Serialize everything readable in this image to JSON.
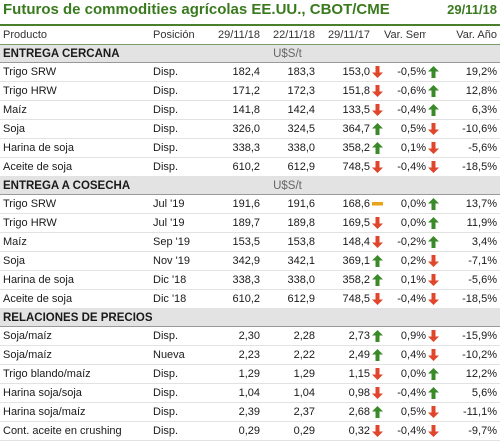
{
  "header": {
    "title": "Futuros de commodities agrícolas EE.UU., CBOT/CME",
    "date": "29/11/18"
  },
  "columns": [
    "Producto",
    "Posición",
    "29/11/18",
    "22/11/18",
    "29/11/17",
    "Var. Sem.",
    "Var. Año"
  ],
  "sections": [
    {
      "title": "ENTREGA CERCANA",
      "unit": "U$S/t",
      "rows": [
        {
          "product": "Trigo SRW",
          "position": "Disp.",
          "v1": "182,4",
          "v2": "183,3",
          "v3": "153,0",
          "ind1": "down",
          "wk": "-0,5%",
          "ind2": "up",
          "yr": "19,2%"
        },
        {
          "product": "Trigo HRW",
          "position": "Disp.",
          "v1": "171,2",
          "v2": "172,3",
          "v3": "151,8",
          "ind1": "down",
          "wk": "-0,6%",
          "ind2": "up",
          "yr": "12,8%"
        },
        {
          "product": "Maíz",
          "position": "Disp.",
          "v1": "141,8",
          "v2": "142,4",
          "v3": "133,5",
          "ind1": "down",
          "wk": "-0,4%",
          "ind2": "up",
          "yr": "6,3%"
        },
        {
          "product": "Soja",
          "position": "Disp.",
          "v1": "326,0",
          "v2": "324,5",
          "v3": "364,7",
          "ind1": "up",
          "wk": "0,5%",
          "ind2": "down",
          "yr": "-10,6%"
        },
        {
          "product": "Harina de soja",
          "position": "Disp.",
          "v1": "338,3",
          "v2": "338,0",
          "v3": "358,2",
          "ind1": "up",
          "wk": "0,1%",
          "ind2": "down",
          "yr": "-5,6%"
        },
        {
          "product": "Aceite de soja",
          "position": "Disp.",
          "v1": "610,2",
          "v2": "612,9",
          "v3": "748,5",
          "ind1": "down",
          "wk": "-0,4%",
          "ind2": "down",
          "yr": "-18,5%"
        }
      ]
    },
    {
      "title": "ENTREGA A COSECHA",
      "unit": "U$S/t",
      "rows": [
        {
          "product": "Trigo SRW",
          "position": "Jul '19",
          "v1": "191,6",
          "v2": "191,6",
          "v3": "168,6",
          "ind1": "flat",
          "wk": "0,0%",
          "ind2": "up",
          "yr": "13,7%"
        },
        {
          "product": "Trigo HRW",
          "position": "Jul '19",
          "v1": "189,7",
          "v2": "189,8",
          "v3": "169,5",
          "ind1": "down",
          "wk": "0,0%",
          "ind2": "up",
          "yr": "11,9%"
        },
        {
          "product": "Maíz",
          "position": "Sep '19",
          "v1": "153,5",
          "v2": "153,8",
          "v3": "148,4",
          "ind1": "down",
          "wk": "-0,2%",
          "ind2": "up",
          "yr": "3,4%"
        },
        {
          "product": "Soja",
          "position": "Nov '19",
          "v1": "342,9",
          "v2": "342,1",
          "v3": "369,1",
          "ind1": "up",
          "wk": "0,2%",
          "ind2": "down",
          "yr": "-7,1%"
        },
        {
          "product": "Harina de soja",
          "position": "Dic '18",
          "v1": "338,3",
          "v2": "338,0",
          "v3": "358,2",
          "ind1": "up",
          "wk": "0,1%",
          "ind2": "down",
          "yr": "-5,6%"
        },
        {
          "product": "Aceite de soja",
          "position": "Dic '18",
          "v1": "610,2",
          "v2": "612,9",
          "v3": "748,5",
          "ind1": "down",
          "wk": "-0,4%",
          "ind2": "down",
          "yr": "-18,5%"
        }
      ]
    },
    {
      "title": "RELACIONES DE PRECIOS",
      "unit": "",
      "rows": [
        {
          "product": "Soja/maíz",
          "position": "Disp.",
          "v1": "2,30",
          "v2": "2,28",
          "v3": "2,73",
          "ind1": "up",
          "wk": "0,9%",
          "ind2": "down",
          "yr": "-15,9%"
        },
        {
          "product": "Soja/maíz",
          "position": "Nueva",
          "v1": "2,23",
          "v2": "2,22",
          "v3": "2,49",
          "ind1": "up",
          "wk": "0,4%",
          "ind2": "down",
          "yr": "-10,2%"
        },
        {
          "product": "Trigo blando/maíz",
          "position": "Disp.",
          "v1": "1,29",
          "v2": "1,29",
          "v3": "1,15",
          "ind1": "down",
          "wk": "0,0%",
          "ind2": "up",
          "yr": "12,2%"
        },
        {
          "product": "Harina soja/soja",
          "position": "Disp.",
          "v1": "1,04",
          "v2": "1,04",
          "v3": "0,98",
          "ind1": "down",
          "wk": "-0,4%",
          "ind2": "up",
          "yr": "5,6%"
        },
        {
          "product": "Harina soja/maíz",
          "position": "Disp.",
          "v1": "2,39",
          "v2": "2,37",
          "v3": "2,68",
          "ind1": "up",
          "wk": "0,5%",
          "ind2": "down",
          "yr": "-11,1%"
        },
        {
          "product": "Cont. aceite en crushing",
          "position": "Disp.",
          "v1": "0,29",
          "v2": "0,29",
          "v3": "0,32",
          "ind1": "down",
          "wk": "-0,4%",
          "ind2": "down",
          "yr": "-9,7%"
        }
      ]
    }
  ],
  "colors": {
    "up": "#3a8a2a",
    "down": "#e0462c",
    "flat": "#e8a317",
    "title": "#3a7a1f"
  }
}
